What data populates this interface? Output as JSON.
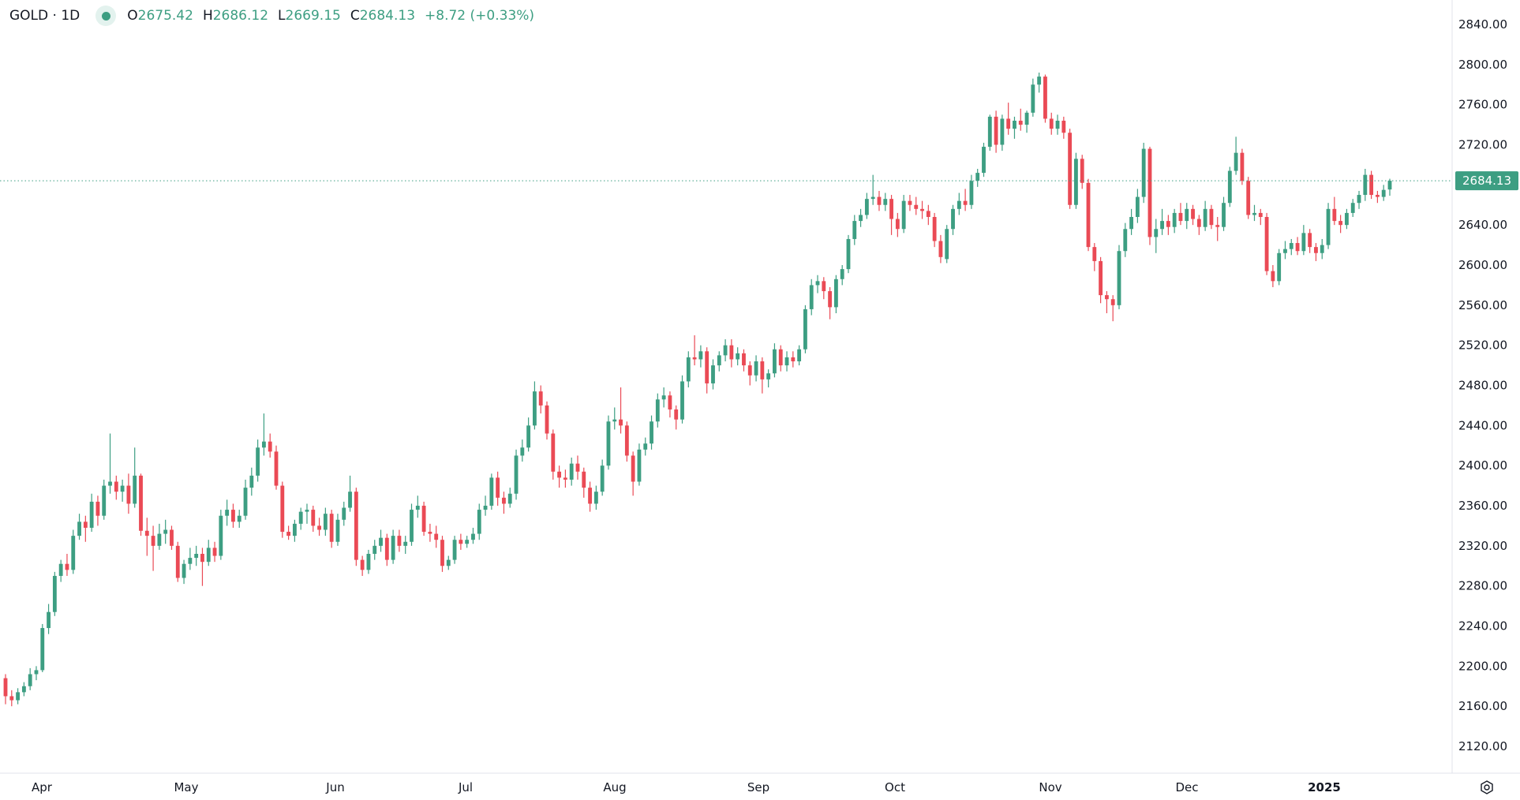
{
  "legend": {
    "symbol": "GOLD · 1D",
    "open_label": "O",
    "open": "2675.42",
    "high_label": "H",
    "high": "2686.12",
    "low_label": "L",
    "low": "2669.15",
    "close_label": "C",
    "close": "2684.13",
    "change": "+8.72 (+0.33%)"
  },
  "colors": {
    "up": "#3d9e82",
    "down": "#ea4a55",
    "last_price": "#3d9e82"
  },
  "chart_data": {
    "type": "candlestick",
    "title": "GOLD · 1D",
    "y_ticks": [
      "2840.00",
      "2800.00",
      "2760.00",
      "2720.00",
      "2680.00",
      "2640.00",
      "2600.00",
      "2560.00",
      "2520.00",
      "2480.00",
      "2440.00",
      "2400.00",
      "2360.00",
      "2320.00",
      "2280.00",
      "2240.00",
      "2200.00",
      "2160.00",
      "2120.00"
    ],
    "ylim": [
      2100,
      2845
    ],
    "x_ticks": [
      "Apr",
      "May",
      "Jun",
      "Jul",
      "Aug",
      "Sep",
      "Oct",
      "Nov",
      "Dec",
      "2025"
    ],
    "last_price": "2684.13",
    "ohlc": [
      [
        2188,
        2192,
        2162,
        2170
      ],
      [
        2170,
        2176,
        2160,
        2166
      ],
      [
        2166,
        2178,
        2162,
        2174
      ],
      [
        2174,
        2184,
        2170,
        2180
      ],
      [
        2180,
        2198,
        2176,
        2192
      ],
      [
        2192,
        2200,
        2186,
        2196
      ],
      [
        2196,
        2242,
        2194,
        2238
      ],
      [
        2238,
        2262,
        2232,
        2254
      ],
      [
        2254,
        2294,
        2250,
        2290
      ],
      [
        2290,
        2306,
        2284,
        2302
      ],
      [
        2302,
        2312,
        2290,
        2296
      ],
      [
        2296,
        2336,
        2292,
        2330
      ],
      [
        2330,
        2352,
        2326,
        2344
      ],
      [
        2344,
        2350,
        2324,
        2338
      ],
      [
        2338,
        2372,
        2334,
        2364
      ],
      [
        2364,
        2370,
        2340,
        2350
      ],
      [
        2350,
        2386,
        2346,
        2380
      ],
      [
        2380,
        2432,
        2372,
        2384
      ],
      [
        2384,
        2390,
        2366,
        2374
      ],
      [
        2374,
        2386,
        2364,
        2380
      ],
      [
        2380,
        2392,
        2352,
        2362
      ],
      [
        2362,
        2418,
        2358,
        2390
      ],
      [
        2390,
        2392,
        2330,
        2335
      ],
      [
        2335,
        2348,
        2310,
        2330
      ],
      [
        2330,
        2340,
        2295,
        2320
      ],
      [
        2320,
        2342,
        2316,
        2332
      ],
      [
        2332,
        2346,
        2322,
        2336
      ],
      [
        2336,
        2340,
        2316,
        2320
      ],
      [
        2320,
        2324,
        2284,
        2288
      ],
      [
        2288,
        2306,
        2282,
        2302
      ],
      [
        2302,
        2318,
        2296,
        2308
      ],
      [
        2308,
        2320,
        2300,
        2312
      ],
      [
        2312,
        2318,
        2280,
        2304
      ],
      [
        2304,
        2326,
        2300,
        2318
      ],
      [
        2318,
        2324,
        2304,
        2310
      ],
      [
        2310,
        2356,
        2306,
        2350
      ],
      [
        2350,
        2366,
        2340,
        2356
      ],
      [
        2356,
        2362,
        2338,
        2344
      ],
      [
        2344,
        2356,
        2338,
        2350
      ],
      [
        2350,
        2386,
        2346,
        2378
      ],
      [
        2378,
        2398,
        2370,
        2390
      ],
      [
        2390,
        2426,
        2384,
        2418
      ],
      [
        2418,
        2452,
        2410,
        2424
      ],
      [
        2424,
        2432,
        2408,
        2414
      ],
      [
        2414,
        2420,
        2376,
        2380
      ],
      [
        2380,
        2384,
        2328,
        2334
      ],
      [
        2334,
        2340,
        2326,
        2330
      ],
      [
        2330,
        2346,
        2324,
        2342
      ],
      [
        2342,
        2358,
        2336,
        2354
      ],
      [
        2354,
        2362,
        2342,
        2356
      ],
      [
        2356,
        2360,
        2334,
        2340
      ],
      [
        2340,
        2348,
        2330,
        2336
      ],
      [
        2336,
        2358,
        2330,
        2352
      ],
      [
        2352,
        2356,
        2318,
        2324
      ],
      [
        2324,
        2352,
        2320,
        2346
      ],
      [
        2346,
        2364,
        2340,
        2358
      ],
      [
        2358,
        2390,
        2354,
        2374
      ],
      [
        2374,
        2378,
        2300,
        2306
      ],
      [
        2306,
        2310,
        2290,
        2296
      ],
      [
        2296,
        2316,
        2292,
        2312
      ],
      [
        2312,
        2326,
        2306,
        2320
      ],
      [
        2320,
        2336,
        2314,
        2328
      ],
      [
        2328,
        2332,
        2300,
        2306
      ],
      [
        2306,
        2336,
        2302,
        2330
      ],
      [
        2330,
        2336,
        2314,
        2320
      ],
      [
        2320,
        2330,
        2312,
        2324
      ],
      [
        2324,
        2362,
        2320,
        2356
      ],
      [
        2356,
        2370,
        2348,
        2360
      ],
      [
        2360,
        2364,
        2330,
        2334
      ],
      [
        2334,
        2342,
        2324,
        2332
      ],
      [
        2332,
        2340,
        2318,
        2326
      ],
      [
        2326,
        2330,
        2294,
        2300
      ],
      [
        2300,
        2310,
        2296,
        2306
      ],
      [
        2306,
        2330,
        2302,
        2326
      ],
      [
        2326,
        2332,
        2316,
        2322
      ],
      [
        2322,
        2330,
        2318,
        2326
      ],
      [
        2326,
        2338,
        2322,
        2332
      ],
      [
        2332,
        2362,
        2326,
        2356
      ],
      [
        2356,
        2370,
        2350,
        2360
      ],
      [
        2360,
        2392,
        2356,
        2388
      ],
      [
        2388,
        2394,
        2360,
        2368
      ],
      [
        2368,
        2374,
        2352,
        2362
      ],
      [
        2362,
        2378,
        2358,
        2372
      ],
      [
        2372,
        2416,
        2366,
        2410
      ],
      [
        2410,
        2426,
        2404,
        2418
      ],
      [
        2418,
        2448,
        2414,
        2440
      ],
      [
        2440,
        2484,
        2436,
        2474
      ],
      [
        2474,
        2480,
        2452,
        2460
      ],
      [
        2460,
        2464,
        2426,
        2432
      ],
      [
        2432,
        2436,
        2386,
        2394
      ],
      [
        2394,
        2400,
        2378,
        2388
      ],
      [
        2388,
        2396,
        2378,
        2386
      ],
      [
        2386,
        2408,
        2380,
        2402
      ],
      [
        2402,
        2410,
        2386,
        2394
      ],
      [
        2394,
        2398,
        2368,
        2378
      ],
      [
        2378,
        2384,
        2354,
        2362
      ],
      [
        2362,
        2380,
        2356,
        2374
      ],
      [
        2374,
        2406,
        2370,
        2400
      ],
      [
        2400,
        2450,
        2396,
        2444
      ],
      [
        2444,
        2458,
        2436,
        2446
      ],
      [
        2446,
        2478,
        2432,
        2440
      ],
      [
        2440,
        2444,
        2404,
        2410
      ],
      [
        2410,
        2414,
        2370,
        2384
      ],
      [
        2384,
        2422,
        2380,
        2416
      ],
      [
        2416,
        2428,
        2410,
        2422
      ],
      [
        2422,
        2450,
        2416,
        2444
      ],
      [
        2444,
        2472,
        2438,
        2466
      ],
      [
        2466,
        2478,
        2458,
        2470
      ],
      [
        2470,
        2474,
        2448,
        2456
      ],
      [
        2456,
        2460,
        2436,
        2446
      ],
      [
        2446,
        2490,
        2442,
        2484
      ],
      [
        2484,
        2514,
        2478,
        2508
      ],
      [
        2508,
        2530,
        2500,
        2506
      ],
      [
        2506,
        2520,
        2498,
        2514
      ],
      [
        2514,
        2518,
        2472,
        2482
      ],
      [
        2482,
        2506,
        2476,
        2500
      ],
      [
        2500,
        2514,
        2494,
        2510
      ],
      [
        2510,
        2526,
        2504,
        2520
      ],
      [
        2520,
        2526,
        2498,
        2506
      ],
      [
        2506,
        2518,
        2500,
        2512
      ],
      [
        2512,
        2516,
        2494,
        2500
      ],
      [
        2500,
        2504,
        2480,
        2490
      ],
      [
        2490,
        2510,
        2484,
        2504
      ],
      [
        2504,
        2508,
        2472,
        2486
      ],
      [
        2486,
        2496,
        2478,
        2492
      ],
      [
        2492,
        2522,
        2488,
        2516
      ],
      [
        2516,
        2520,
        2494,
        2500
      ],
      [
        2500,
        2514,
        2494,
        2508
      ],
      [
        2508,
        2514,
        2498,
        2504
      ],
      [
        2504,
        2520,
        2500,
        2516
      ],
      [
        2516,
        2560,
        2512,
        2556
      ],
      [
        2556,
        2586,
        2550,
        2580
      ],
      [
        2580,
        2590,
        2572,
        2584
      ],
      [
        2584,
        2588,
        2566,
        2574
      ],
      [
        2574,
        2578,
        2546,
        2558
      ],
      [
        2558,
        2590,
        2552,
        2586
      ],
      [
        2586,
        2600,
        2580,
        2596
      ],
      [
        2596,
        2630,
        2592,
        2626
      ],
      [
        2626,
        2650,
        2620,
        2644
      ],
      [
        2644,
        2656,
        2638,
        2650
      ],
      [
        2650,
        2672,
        2646,
        2666
      ],
      [
        2666,
        2690,
        2660,
        2668
      ],
      [
        2668,
        2674,
        2654,
        2660
      ],
      [
        2660,
        2672,
        2654,
        2666
      ],
      [
        2666,
        2670,
        2630,
        2646
      ],
      [
        2646,
        2652,
        2628,
        2636
      ],
      [
        2636,
        2670,
        2632,
        2664
      ],
      [
        2664,
        2670,
        2654,
        2660
      ],
      [
        2660,
        2668,
        2650,
        2656
      ],
      [
        2656,
        2664,
        2646,
        2654
      ],
      [
        2654,
        2660,
        2640,
        2648
      ],
      [
        2648,
        2652,
        2618,
        2624
      ],
      [
        2624,
        2630,
        2602,
        2608
      ],
      [
        2606,
        2640,
        2602,
        2636
      ],
      [
        2636,
        2660,
        2630,
        2656
      ],
      [
        2656,
        2672,
        2650,
        2664
      ],
      [
        2664,
        2676,
        2654,
        2660
      ],
      [
        2660,
        2690,
        2656,
        2684
      ],
      [
        2684,
        2696,
        2678,
        2692
      ],
      [
        2692,
        2722,
        2688,
        2718
      ],
      [
        2718,
        2750,
        2714,
        2748
      ],
      [
        2748,
        2754,
        2712,
        2720
      ],
      [
        2720,
        2750,
        2714,
        2746
      ],
      [
        2746,
        2762,
        2730,
        2736
      ],
      [
        2736,
        2748,
        2726,
        2744
      ],
      [
        2744,
        2756,
        2734,
        2740
      ],
      [
        2740,
        2754,
        2732,
        2752
      ],
      [
        2752,
        2786,
        2748,
        2780
      ],
      [
        2780,
        2792,
        2772,
        2788
      ],
      [
        2788,
        2790,
        2742,
        2746
      ],
      [
        2746,
        2752,
        2730,
        2736
      ],
      [
        2736,
        2750,
        2730,
        2744
      ],
      [
        2744,
        2748,
        2726,
        2732
      ],
      [
        2732,
        2736,
        2656,
        2660
      ],
      [
        2660,
        2712,
        2656,
        2706
      ],
      [
        2706,
        2710,
        2676,
        2682
      ],
      [
        2682,
        2686,
        2614,
        2618
      ],
      [
        2618,
        2622,
        2594,
        2604
      ],
      [
        2604,
        2608,
        2562,
        2570
      ],
      [
        2570,
        2574,
        2552,
        2566
      ],
      [
        2566,
        2570,
        2544,
        2560
      ],
      [
        2560,
        2620,
        2556,
        2614
      ],
      [
        2614,
        2642,
        2608,
        2636
      ],
      [
        2636,
        2656,
        2630,
        2648
      ],
      [
        2648,
        2676,
        2642,
        2668
      ],
      [
        2668,
        2722,
        2662,
        2716
      ],
      [
        2716,
        2718,
        2620,
        2628
      ],
      [
        2628,
        2646,
        2612,
        2636
      ],
      [
        2636,
        2656,
        2630,
        2644
      ],
      [
        2644,
        2650,
        2630,
        2638
      ],
      [
        2638,
        2656,
        2632,
        2652
      ],
      [
        2652,
        2662,
        2640,
        2644
      ],
      [
        2644,
        2662,
        2636,
        2656
      ],
      [
        2656,
        2660,
        2640,
        2646
      ],
      [
        2646,
        2650,
        2630,
        2638
      ],
      [
        2638,
        2664,
        2634,
        2656
      ],
      [
        2656,
        2660,
        2636,
        2640
      ],
      [
        2640,
        2648,
        2624,
        2638
      ],
      [
        2638,
        2668,
        2634,
        2662
      ],
      [
        2662,
        2698,
        2658,
        2694
      ],
      [
        2694,
        2728,
        2690,
        2712
      ],
      [
        2712,
        2716,
        2680,
        2684
      ],
      [
        2684,
        2688,
        2646,
        2650
      ],
      [
        2650,
        2660,
        2644,
        2652
      ],
      [
        2652,
        2656,
        2640,
        2648
      ],
      [
        2648,
        2652,
        2590,
        2594
      ],
      [
        2594,
        2600,
        2578,
        2584
      ],
      [
        2584,
        2616,
        2580,
        2612
      ],
      [
        2612,
        2624,
        2606,
        2616
      ],
      [
        2616,
        2626,
        2610,
        2622
      ],
      [
        2622,
        2628,
        2610,
        2614
      ],
      [
        2614,
        2640,
        2610,
        2632
      ],
      [
        2632,
        2636,
        2612,
        2618
      ],
      [
        2618,
        2622,
        2604,
        2612
      ],
      [
        2612,
        2626,
        2606,
        2620
      ],
      [
        2620,
        2662,
        2616,
        2656
      ],
      [
        2656,
        2668,
        2640,
        2644
      ],
      [
        2644,
        2650,
        2632,
        2640
      ],
      [
        2640,
        2656,
        2636,
        2652
      ],
      [
        2652,
        2666,
        2648,
        2662
      ],
      [
        2662,
        2674,
        2656,
        2670
      ],
      [
        2670,
        2696,
        2664,
        2690
      ],
      [
        2690,
        2694,
        2666,
        2670
      ],
      [
        2670,
        2674,
        2662,
        2668
      ],
      [
        2668,
        2680,
        2664,
        2675
      ],
      [
        2675.42,
        2686.12,
        2669.15,
        2684.13
      ]
    ]
  }
}
